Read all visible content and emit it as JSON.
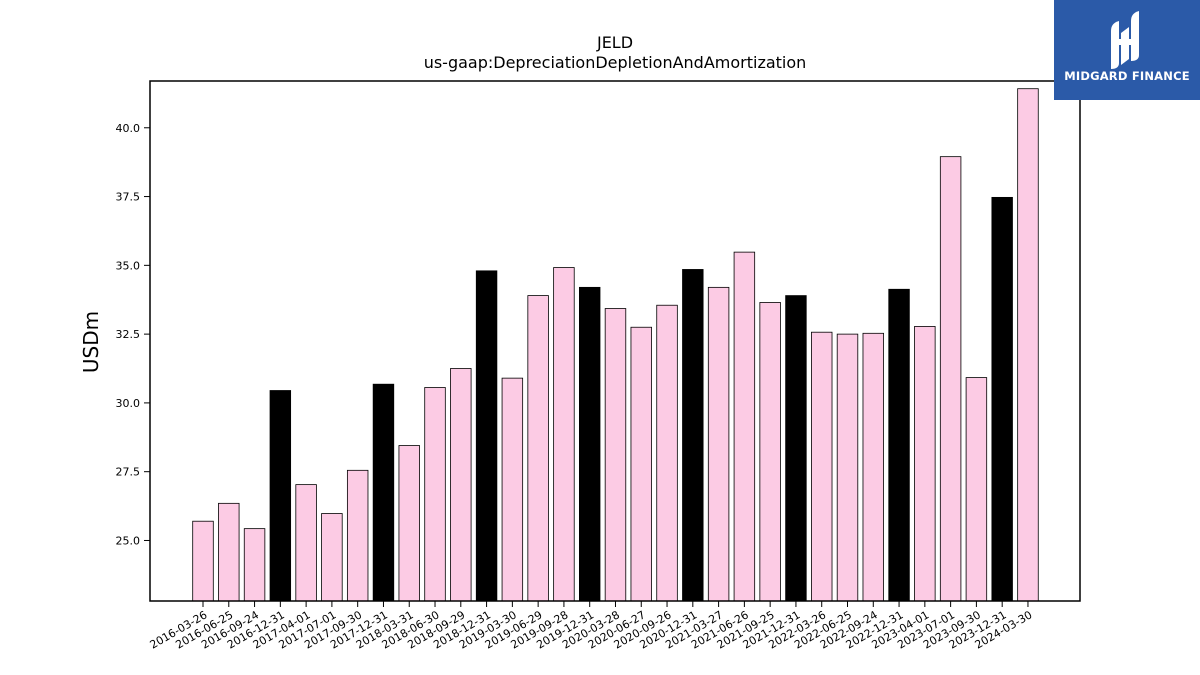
{
  "logo": {
    "text": "MIDGARD FINANCE",
    "color": "#2b5aa8"
  },
  "chart_data": {
    "type": "bar",
    "title": "JELD",
    "subtitle": "us-gaap:DepreciationDepletionAndAmortization",
    "ylabel": "USDm",
    "xlabel": "",
    "ylim": [
      22.8,
      41.7
    ],
    "yticks": [
      25.0,
      27.5,
      30.0,
      32.5,
      35.0,
      37.5,
      40.0
    ],
    "grid": false,
    "colors": {
      "quarter": "#fccbe4",
      "year_end": "#000000",
      "edge": "#000000"
    },
    "categories": [
      "2016-03-26",
      "2016-06-25",
      "2016-09-24",
      "2016-12-31",
      "2017-04-01",
      "2017-07-01",
      "2017-09-30",
      "2017-12-31",
      "2018-03-31",
      "2018-06-30",
      "2018-09-29",
      "2018-12-31",
      "2019-03-30",
      "2019-06-29",
      "2019-09-28",
      "2019-12-31",
      "2020-03-28",
      "2020-06-27",
      "2020-09-26",
      "2020-12-31",
      "2021-03-27",
      "2021-06-26",
      "2021-09-25",
      "2021-12-31",
      "2022-03-26",
      "2022-06-25",
      "2022-09-24",
      "2022-12-31",
      "2023-04-01",
      "2023-07-01",
      "2023-09-30",
      "2023-12-31",
      "2024-03-30"
    ],
    "values": [
      25.7,
      26.35,
      25.43,
      30.45,
      27.03,
      25.98,
      27.55,
      30.68,
      28.45,
      30.56,
      31.25,
      34.8,
      30.9,
      33.9,
      34.92,
      34.2,
      33.43,
      32.75,
      33.55,
      34.85,
      34.2,
      35.48,
      33.65,
      33.9,
      32.57,
      32.5,
      32.53,
      34.13,
      32.78,
      38.95,
      30.92,
      37.47,
      41.42
    ],
    "year_end": [
      false,
      false,
      false,
      true,
      false,
      false,
      false,
      true,
      false,
      false,
      false,
      true,
      false,
      false,
      false,
      true,
      false,
      false,
      false,
      true,
      false,
      false,
      false,
      true,
      false,
      false,
      false,
      true,
      false,
      false,
      false,
      true,
      false
    ]
  }
}
